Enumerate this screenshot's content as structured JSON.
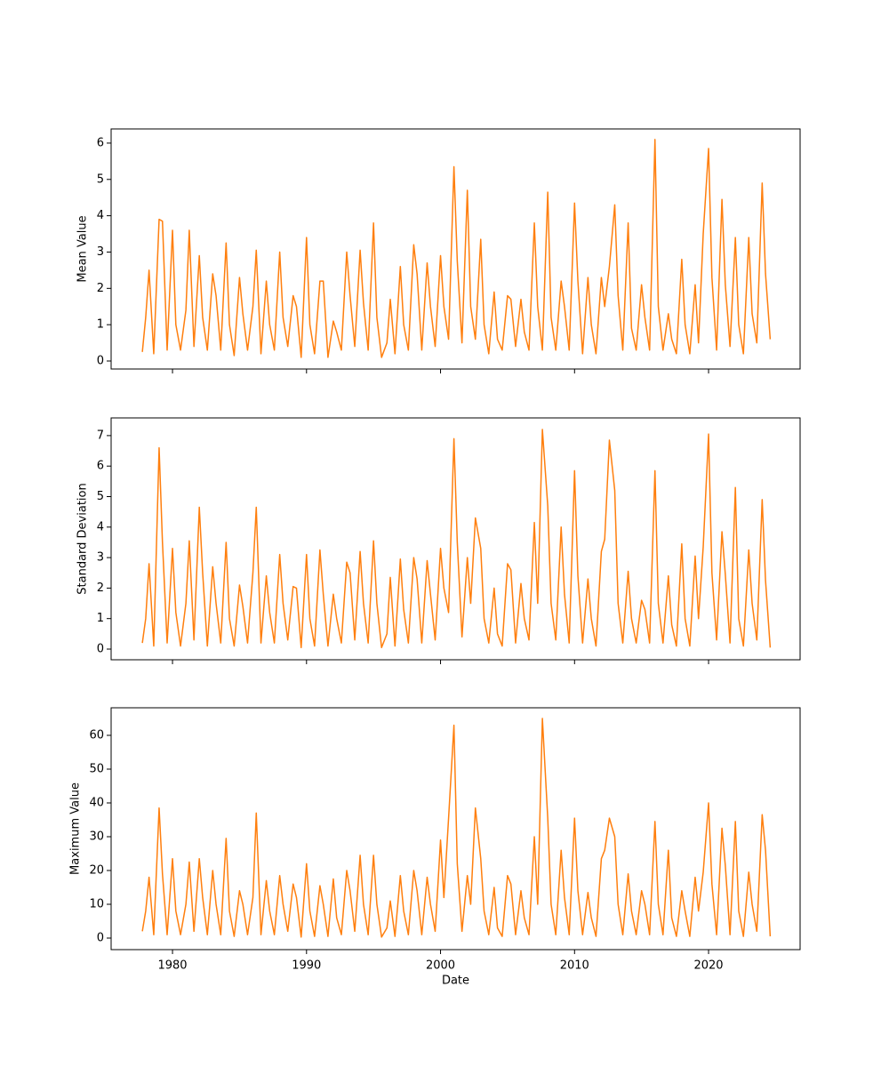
{
  "chart_data": [
    {
      "type": "line",
      "y_label": "Mean Value",
      "x": [
        1977.75,
        1978,
        1978.25,
        1978.6,
        1979,
        1979.25,
        1979.6,
        1980,
        1980.25,
        1980.6,
        1981,
        1981.25,
        1981.6,
        1982,
        1982.25,
        1982.6,
        1983,
        1983.25,
        1983.6,
        1984,
        1984.25,
        1984.6,
        1985,
        1985.25,
        1985.6,
        1986,
        1986.25,
        1986.6,
        1987,
        1987.25,
        1987.6,
        1988,
        1988.25,
        1988.6,
        1989,
        1989.25,
        1989.6,
        1990,
        1990.25,
        1990.6,
        1991,
        1991.25,
        1991.6,
        1992,
        1992.25,
        1992.6,
        1993,
        1993.25,
        1993.6,
        1994,
        1994.25,
        1994.6,
        1995,
        1995.25,
        1995.6,
        1996,
        1996.25,
        1996.6,
        1997,
        1997.25,
        1997.6,
        1998,
        1998.25,
        1998.6,
        1999,
        1999.25,
        1999.6,
        2000,
        2000.25,
        2000.6,
        2001,
        2001.25,
        2001.6,
        2002,
        2002.25,
        2002.6,
        2003,
        2003.25,
        2003.6,
        2004,
        2004.25,
        2004.6,
        2005,
        2005.25,
        2005.6,
        2006,
        2006.25,
        2006.6,
        2007,
        2007.25,
        2007.6,
        2008,
        2008.25,
        2008.6,
        2009,
        2009.25,
        2009.6,
        2010,
        2010.25,
        2010.6,
        2011,
        2011.25,
        2011.6,
        2012,
        2012.25,
        2012.6,
        2013,
        2013.25,
        2013.6,
        2014,
        2014.25,
        2014.6,
        2015,
        2015.25,
        2015.6,
        2016,
        2016.25,
        2016.6,
        2017,
        2017.25,
        2017.6,
        2018,
        2018.25,
        2018.6,
        2019,
        2019.25,
        2019.6,
        2020,
        2020.25,
        2020.6,
        2021,
        2021.25,
        2021.6,
        2022,
        2022.25,
        2022.6,
        2023,
        2023.25,
        2023.6,
        2024,
        2024.25,
        2024.6
      ],
      "series": [
        {
          "color": "#ff7f0e",
          "values": [
            0.25,
            1.2,
            2.5,
            0.2,
            3.9,
            3.85,
            0.3,
            3.6,
            1.0,
            0.3,
            1.4,
            3.6,
            0.4,
            2.9,
            1.2,
            0.3,
            2.4,
            1.8,
            0.3,
            3.25,
            1.0,
            0.15,
            2.3,
            1.3,
            0.3,
            1.5,
            3.05,
            0.2,
            2.2,
            1.0,
            0.3,
            3.0,
            1.2,
            0.4,
            1.8,
            1.5,
            0.1,
            3.4,
            1.0,
            0.2,
            2.2,
            2.2,
            0.1,
            1.1,
            0.8,
            0.3,
            3.0,
            1.8,
            0.4,
            3.05,
            1.6,
            0.3,
            3.8,
            1.2,
            0.1,
            0.5,
            1.7,
            0.2,
            2.6,
            1.0,
            0.3,
            3.2,
            2.4,
            0.3,
            2.7,
            1.5,
            0.4,
            2.9,
            1.5,
            0.6,
            5.35,
            2.75,
            0.5,
            4.7,
            1.5,
            0.6,
            3.35,
            1.0,
            0.2,
            1.9,
            0.6,
            0.3,
            1.8,
            1.7,
            0.4,
            1.7,
            0.8,
            0.3,
            3.8,
            1.5,
            0.3,
            4.65,
            1.2,
            0.3,
            2.2,
            1.5,
            0.3,
            4.35,
            2.2,
            0.2,
            2.3,
            1.0,
            0.2,
            2.3,
            1.5,
            2.6,
            4.3,
            1.8,
            0.3,
            3.8,
            0.9,
            0.3,
            2.1,
            1.2,
            0.3,
            6.1,
            1.5,
            0.3,
            1.3,
            0.6,
            0.2,
            2.8,
            1.0,
            0.2,
            2.1,
            0.5,
            3.5,
            5.85,
            2.3,
            0.3,
            4.45,
            2.1,
            0.4,
            3.4,
            1.0,
            0.2,
            3.4,
            1.3,
            0.5,
            4.9,
            2.4,
            0.6
          ]
        }
      ],
      "xlim": [
        1975.42,
        2026.83
      ],
      "ylim": [
        -0.22,
        6.39
      ],
      "xticks": [
        1980,
        1990,
        2000,
        2010,
        2020
      ],
      "yticks": [
        0,
        1,
        2,
        3,
        4,
        5,
        6
      ]
    },
    {
      "type": "line",
      "y_label": "Standard Deviation",
      "x": [
        1977.75,
        1978,
        1978.25,
        1978.6,
        1979,
        1979.25,
        1979.6,
        1980,
        1980.25,
        1980.6,
        1981,
        1981.25,
        1981.6,
        1982,
        1982.25,
        1982.6,
        1983,
        1983.25,
        1983.6,
        1984,
        1984.25,
        1984.6,
        1985,
        1985.25,
        1985.6,
        1986,
        1986.25,
        1986.6,
        1987,
        1987.25,
        1987.6,
        1988,
        1988.25,
        1988.6,
        1989,
        1989.25,
        1989.6,
        1990,
        1990.25,
        1990.6,
        1991,
        1991.25,
        1991.6,
        1992,
        1992.25,
        1992.6,
        1993,
        1993.25,
        1993.6,
        1994,
        1994.25,
        1994.6,
        1995,
        1995.25,
        1995.6,
        1996,
        1996.25,
        1996.6,
        1997,
        1997.25,
        1997.6,
        1998,
        1998.25,
        1998.6,
        1999,
        1999.25,
        1999.6,
        2000,
        2000.25,
        2000.6,
        2001,
        2001.25,
        2001.6,
        2002,
        2002.25,
        2002.6,
        2003,
        2003.25,
        2003.6,
        2004,
        2004.25,
        2004.6,
        2005,
        2005.25,
        2005.6,
        2006,
        2006.25,
        2006.6,
        2007,
        2007.25,
        2007.6,
        2008,
        2008.25,
        2008.6,
        2009,
        2009.25,
        2009.6,
        2010,
        2010.25,
        2010.6,
        2011,
        2011.25,
        2011.6,
        2012,
        2012.25,
        2012.6,
        2013,
        2013.25,
        2013.6,
        2014,
        2014.25,
        2014.6,
        2015,
        2015.25,
        2015.6,
        2016,
        2016.25,
        2016.6,
        2017,
        2017.25,
        2017.6,
        2018,
        2018.25,
        2018.6,
        2019,
        2019.25,
        2019.6,
        2020,
        2020.25,
        2020.6,
        2021,
        2021.25,
        2021.6,
        2022,
        2022.25,
        2022.6,
        2023,
        2023.25,
        2023.6,
        2024,
        2024.25,
        2024.6
      ],
      "series": [
        {
          "color": "#ff7f0e",
          "values": [
            0.2,
            1.0,
            2.8,
            0.1,
            6.6,
            3.5,
            0.2,
            3.3,
            1.2,
            0.1,
            1.5,
            3.55,
            0.3,
            4.65,
            2.5,
            0.1,
            2.7,
            1.5,
            0.2,
            3.5,
            1.0,
            0.1,
            2.1,
            1.4,
            0.2,
            2.5,
            4.65,
            0.2,
            2.4,
            1.2,
            0.2,
            3.1,
            1.5,
            0.3,
            2.05,
            2.0,
            0.05,
            3.1,
            1.0,
            0.1,
            3.25,
            1.8,
            0.1,
            1.8,
            1.0,
            0.2,
            2.85,
            2.5,
            0.3,
            3.2,
            1.5,
            0.2,
            3.55,
            1.5,
            0.05,
            0.5,
            2.35,
            0.1,
            2.95,
            1.3,
            0.2,
            3.0,
            2.3,
            0.2,
            2.9,
            1.8,
            0.3,
            3.3,
            2.0,
            1.2,
            6.9,
            3.5,
            0.4,
            3.0,
            1.5,
            4.3,
            3.3,
            1.0,
            0.2,
            2.0,
            0.5,
            0.1,
            2.8,
            2.6,
            0.2,
            2.15,
            1.0,
            0.3,
            4.15,
            1.5,
            7.2,
            4.7,
            1.5,
            0.3,
            4.0,
            1.8,
            0.2,
            5.85,
            2.4,
            0.2,
            2.3,
            1.0,
            0.1,
            3.2,
            3.6,
            6.85,
            5.2,
            1.5,
            0.2,
            2.55,
            1.0,
            0.2,
            1.6,
            1.3,
            0.2,
            5.85,
            1.5,
            0.2,
            2.4,
            0.8,
            0.1,
            3.45,
            1.0,
            0.1,
            3.05,
            1.0,
            3.35,
            7.05,
            2.5,
            0.3,
            3.85,
            2.45,
            0.2,
            5.3,
            1.0,
            0.1,
            3.25,
            1.5,
            0.3,
            4.9,
            2.25,
            0.05
          ]
        }
      ],
      "xlim": [
        1975.42,
        2026.83
      ],
      "ylim": [
        -0.35,
        7.58
      ],
      "xticks": [
        1980,
        1990,
        2000,
        2010,
        2020
      ],
      "yticks": [
        0,
        1,
        2,
        3,
        4,
        5,
        6,
        7
      ]
    },
    {
      "type": "line",
      "y_label": "Maximum Value",
      "x_label": "Date",
      "x": [
        1977.75,
        1978,
        1978.25,
        1978.6,
        1979,
        1979.25,
        1979.6,
        1980,
        1980.25,
        1980.6,
        1981,
        1981.25,
        1981.6,
        1982,
        1982.25,
        1982.6,
        1983,
        1983.25,
        1983.6,
        1984,
        1984.25,
        1984.6,
        1985,
        1985.25,
        1985.6,
        1986,
        1986.25,
        1986.6,
        1987,
        1987.25,
        1987.6,
        1988,
        1988.25,
        1988.6,
        1989,
        1989.25,
        1989.6,
        1990,
        1990.25,
        1990.6,
        1991,
        1991.25,
        1991.6,
        1992,
        1992.25,
        1992.6,
        1993,
        1993.25,
        1993.6,
        1994,
        1994.25,
        1994.6,
        1995,
        1995.25,
        1995.6,
        1996,
        1996.25,
        1996.6,
        1997,
        1997.25,
        1997.6,
        1998,
        1998.25,
        1998.6,
        1999,
        1999.25,
        1999.6,
        2000,
        2000.25,
        2000.6,
        2001,
        2001.25,
        2001.6,
        2002,
        2002.25,
        2002.6,
        2003,
        2003.25,
        2003.6,
        2004,
        2004.25,
        2004.6,
        2005,
        2005.25,
        2005.6,
        2006,
        2006.25,
        2006.6,
        2007,
        2007.25,
        2007.6,
        2008,
        2008.25,
        2008.6,
        2009,
        2009.25,
        2009.6,
        2010,
        2010.25,
        2010.6,
        2011,
        2011.25,
        2011.6,
        2012,
        2012.25,
        2012.6,
        2013,
        2013.25,
        2013.6,
        2014,
        2014.25,
        2014.6,
        2015,
        2015.25,
        2015.6,
        2016,
        2016.25,
        2016.6,
        2017,
        2017.25,
        2017.6,
        2018,
        2018.25,
        2018.6,
        2019,
        2019.25,
        2019.6,
        2020,
        2020.25,
        2020.6,
        2021,
        2021.25,
        2021.6,
        2022,
        2022.25,
        2022.6,
        2023,
        2023.25,
        2023.6,
        2024,
        2024.25,
        2024.6
      ],
      "series": [
        {
          "color": "#ff7f0e",
          "values": [
            2,
            8,
            18,
            1,
            38.5,
            19,
            1,
            23.5,
            8,
            1,
            10,
            22.5,
            2,
            23.5,
            12,
            1,
            20,
            10,
            1,
            29.5,
            8,
            0.5,
            14,
            10,
            1,
            12,
            37,
            1,
            17,
            8,
            1,
            18.5,
            10,
            2,
            16,
            12,
            0.3,
            22,
            8,
            0.5,
            15.5,
            10,
            0.5,
            17.5,
            6,
            1,
            20,
            14,
            2,
            24.5,
            10,
            1,
            24.5,
            10,
            0.3,
            3,
            11,
            0.5,
            18.5,
            8,
            1,
            20,
            14,
            1,
            18,
            10,
            2,
            29,
            12,
            35.5,
            63,
            22,
            2,
            18.5,
            10,
            38.5,
            23.5,
            8,
            1,
            15,
            3,
            0.5,
            18.5,
            16,
            1,
            14,
            6,
            1,
            30,
            10,
            65,
            35.5,
            10,
            1,
            26,
            12,
            1,
            35.5,
            14,
            1,
            13.5,
            6,
            0.5,
            23.5,
            26,
            35.5,
            30,
            10,
            1,
            19,
            8,
            1,
            14,
            10,
            1,
            34.5,
            10,
            1,
            26,
            6,
            0.5,
            14,
            8,
            0.5,
            18,
            8,
            19.5,
            40,
            16,
            1,
            32.5,
            21.5,
            1,
            34.5,
            8,
            0.5,
            19.5,
            10,
            2,
            36.5,
            26,
            0.5
          ]
        }
      ],
      "xlim": [
        1975.42,
        2026.83
      ],
      "ylim": [
        -3.42,
        68.16
      ],
      "xticks": [
        1980,
        1990,
        2000,
        2010,
        2020
      ],
      "yticks": [
        0,
        10,
        20,
        30,
        40,
        50,
        60
      ]
    }
  ]
}
